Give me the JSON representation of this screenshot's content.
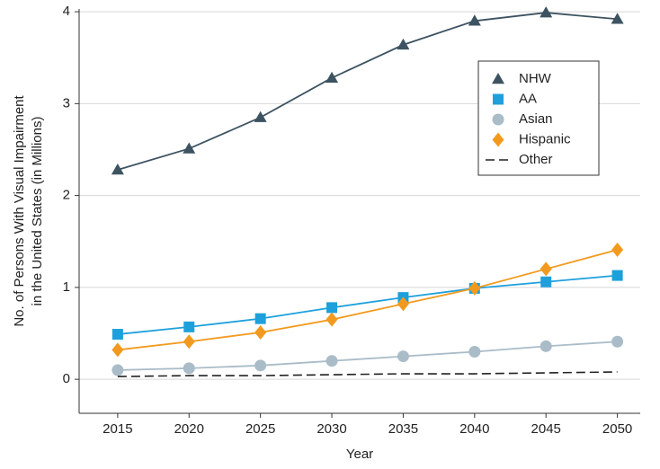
{
  "chart_data": {
    "type": "line",
    "xlabel": "Year",
    "ylabel": [
      "No. of Persons With Visual Impairment",
      "in the United States (in Millions)"
    ],
    "x": [
      2015,
      2020,
      2025,
      2030,
      2035,
      2040,
      2045,
      2050
    ],
    "xlim": [
      2012.3,
      2051.6
    ],
    "xticks": [
      2015,
      2020,
      2025,
      2030,
      2035,
      2040,
      2045,
      2050
    ],
    "ylim": [
      -0.37,
      4.03
    ],
    "yticks": [
      0,
      1,
      2,
      3,
      4
    ],
    "grid": true,
    "legend": "upper-right",
    "series": [
      {
        "name": "NHW",
        "color": "#3d5361",
        "marker": "triangle",
        "values": [
          2.28,
          2.51,
          2.85,
          3.28,
          3.64,
          3.9,
          3.99,
          3.92
        ]
      },
      {
        "name": "AA",
        "color": "#1ea0dc",
        "marker": "square",
        "values": [
          0.49,
          0.57,
          0.66,
          0.78,
          0.89,
          0.99,
          1.06,
          1.13
        ]
      },
      {
        "name": "Asian",
        "color": "#a9bcc8",
        "marker": "circle",
        "values": [
          0.1,
          0.12,
          0.15,
          0.2,
          0.25,
          0.3,
          0.36,
          0.41
        ]
      },
      {
        "name": "Hispanic",
        "color": "#f29a1f",
        "marker": "diamond",
        "values": [
          0.32,
          0.41,
          0.51,
          0.65,
          0.82,
          0.99,
          1.2,
          1.41
        ]
      },
      {
        "name": "Other",
        "color": "#222222",
        "dash": true,
        "values": [
          0.03,
          0.04,
          0.04,
          0.05,
          0.06,
          0.06,
          0.07,
          0.08
        ]
      }
    ]
  }
}
